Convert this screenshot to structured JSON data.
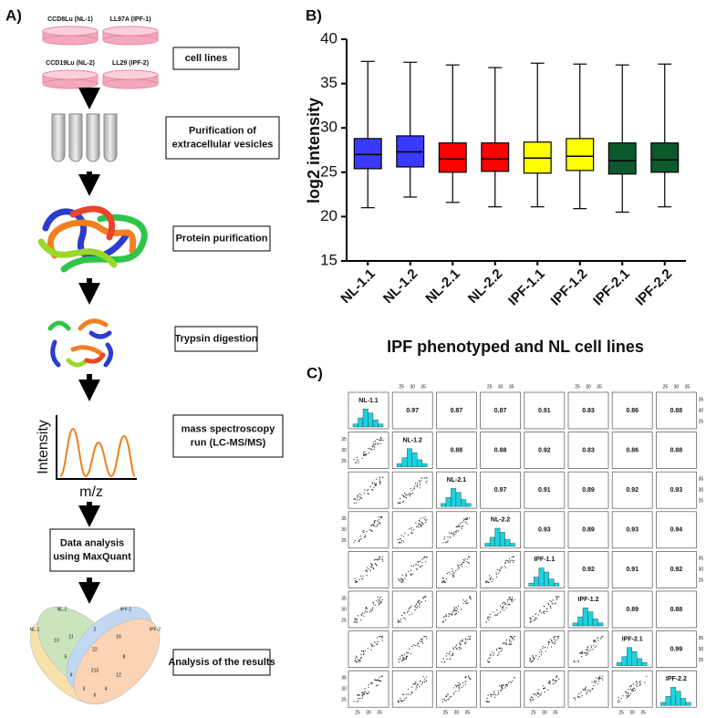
{
  "panel_labels": [
    "A)",
    "B)",
    "C)"
  ],
  "workflow": {
    "cell_lines": [
      "CCD8Lu (NL-1)",
      "LL97A (IPF-1)",
      "CCD19Lu (NL-2)",
      "LL29 (IPF-2)"
    ],
    "steps": [
      [
        "cell lines"
      ],
      [
        "Purification of",
        "extracellular vesicles"
      ],
      [
        "Protein purification"
      ],
      [
        "Trypsin digestion"
      ],
      [
        "mass spectroscopy",
        "run (LC-MS/MS)"
      ],
      [
        "Data analysis",
        "using MaxQuant"
      ],
      [
        "Analysis of the results"
      ]
    ],
    "spectrum_axes": {
      "y": "Intensity",
      "x": "m/z"
    },
    "venn": {
      "sets": [
        "NL-1",
        "NL-2",
        "IPF-1",
        "IPF-2"
      ],
      "regions": [
        213,
        22,
        12,
        9,
        6,
        10,
        16,
        11,
        5,
        8,
        4,
        3,
        2
      ]
    }
  },
  "chart_data": [
    {
      "type": "box",
      "ylabel": "log2 intensity",
      "xlabel": "IPF phenotyped and NL cell lines",
      "categories": [
        "NL-1.1",
        "NL-1.2",
        "NL-2.1",
        "NL-2.2",
        "IPF-1.1",
        "IPF-1.2",
        "IPF-2.1",
        "IPF-2.2"
      ],
      "boxes": [
        {
          "min": 21,
          "q1": 25.4,
          "median": 27,
          "q3": 28.8,
          "max": 37.5,
          "color": "#3a3aff"
        },
        {
          "min": 22.2,
          "q1": 25.6,
          "median": 27.3,
          "q3": 29.1,
          "max": 37.4,
          "color": "#3a3aff"
        },
        {
          "min": 21.6,
          "q1": 25,
          "median": 26.5,
          "q3": 28.3,
          "max": 37.1,
          "color": "#ff0000"
        },
        {
          "min": 21.1,
          "q1": 25.1,
          "median": 26.5,
          "q3": 28.3,
          "max": 36.8,
          "color": "#ff0000"
        },
        {
          "min": 21.1,
          "q1": 24.9,
          "median": 26.6,
          "q3": 28.4,
          "max": 37.3,
          "color": "#ffff00"
        },
        {
          "min": 20.9,
          "q1": 25.2,
          "median": 26.8,
          "q3": 28.8,
          "max": 37.2,
          "color": "#ffff00"
        },
        {
          "min": 20.5,
          "q1": 24.8,
          "median": 26.3,
          "q3": 28.3,
          "max": 37.1,
          "color": "#0b5a2e"
        },
        {
          "min": 21.1,
          "q1": 25,
          "median": 26.4,
          "q3": 28.3,
          "max": 37.2,
          "color": "#0b5a2e"
        }
      ],
      "ylim": [
        15,
        40
      ],
      "yticks": [
        15,
        20,
        25,
        30,
        35,
        40
      ]
    },
    {
      "type": "scatter-matrix",
      "labels": [
        "NL-1.1",
        "NL-1.2",
        "NL-2.1",
        "NL-2.2",
        "IPF-1.1",
        "IPF-1.2",
        "IPF-2.1",
        "IPF-2.2"
      ],
      "correlations": [
        [
          0.97,
          0.87,
          0.87,
          0.91,
          0.83,
          0.86,
          0.88
        ],
        [
          0.88,
          0.88,
          0.92,
          0.83,
          0.86,
          0.88
        ],
        [
          0.97,
          0.91,
          0.89,
          0.92,
          0.93
        ],
        [
          0.93,
          0.89,
          0.93,
          0.94
        ],
        [
          0.92,
          0.91,
          0.92
        ],
        [
          0.89,
          0.88
        ],
        [
          0.99
        ]
      ],
      "hist_color": "#19d3e0",
      "axis_ticks": [
        25,
        30,
        35
      ]
    }
  ]
}
